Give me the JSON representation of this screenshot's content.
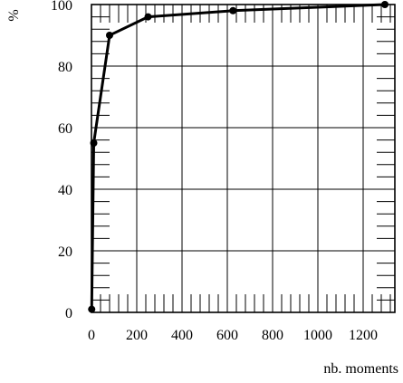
{
  "chart_data": {
    "type": "line",
    "title": "",
    "xlabel": "nb. moments",
    "ylabel": "%",
    "xlim": [
      0,
      1340
    ],
    "ylim": [
      0,
      100
    ],
    "x_ticks": [
      0,
      200,
      400,
      600,
      800,
      1000,
      1200
    ],
    "x_tick_labels": [
      "0",
      "200",
      "400",
      "600",
      "800",
      "1000",
      "1200"
    ],
    "y_ticks": [
      0,
      20,
      40,
      60,
      80,
      100
    ],
    "y_tick_labels": [
      "0",
      "20",
      "40",
      "60",
      "80",
      "100"
    ],
    "x_minor_step": 40,
    "y_minor_step": 4,
    "grid": true,
    "series": [
      {
        "x": [
          1,
          10,
          80,
          250,
          625,
          1296
        ],
        "y": [
          1,
          55,
          90,
          96,
          98,
          100
        ],
        "color": "#000000",
        "marker": "circle"
      }
    ]
  }
}
